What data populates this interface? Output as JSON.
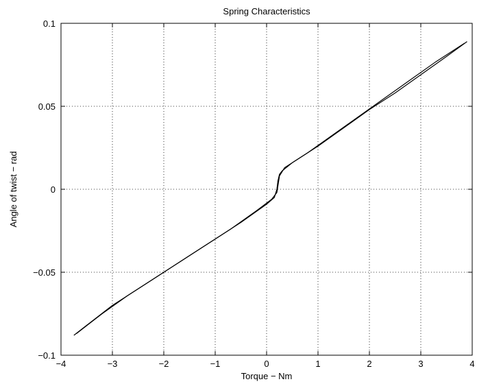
{
  "chart_data": {
    "type": "line",
    "title": "Spring Characteristics",
    "xlabel": "Torque − Nm",
    "ylabel": "Angle of twist − rad",
    "xlim": [
      -4,
      4
    ],
    "ylim": [
      -0.1,
      0.1
    ],
    "xticks": [
      -4,
      -3,
      -2,
      -1,
      0,
      1,
      2,
      3,
      4
    ],
    "xtick_labels": [
      "−4",
      "−3",
      "−2",
      "−1",
      "0",
      "1",
      "2",
      "3",
      "4"
    ],
    "yticks": [
      -0.1,
      -0.05,
      0,
      0.05,
      0.1
    ],
    "ytick_labels": [
      "−0.1",
      "−0.05",
      "0",
      "0.05",
      "0.1"
    ],
    "grid": true,
    "line_color": "#000000",
    "series": [
      {
        "x": [
          -3.75,
          -3.5,
          -3.0,
          -2.5,
          -2.0,
          -1.5,
          -1.0,
          -0.5,
          0.0,
          0.15,
          0.2,
          0.22,
          0.25,
          0.3,
          0.5,
          1.0,
          1.5,
          2.0,
          2.5,
          3.0,
          3.5,
          3.9
        ],
        "y": [
          -0.088,
          -0.082,
          -0.07,
          -0.06,
          -0.05,
          -0.04,
          -0.03,
          -0.02,
          -0.009,
          -0.005,
          0.0,
          0.005,
          0.009,
          0.011,
          0.016,
          0.026,
          0.037,
          0.048,
          0.058,
          0.069,
          0.08,
          0.089
        ]
      },
      {
        "x": [
          -3.7,
          -3.2,
          -2.7,
          -2.2,
          -1.7,
          -1.2,
          -0.7,
          -0.2,
          0.1,
          0.2,
          0.25,
          0.35,
          0.8,
          1.3,
          1.8,
          2.3,
          2.8,
          3.3,
          3.85
        ],
        "y": [
          -0.087,
          -0.075,
          -0.064,
          -0.054,
          -0.044,
          -0.034,
          -0.024,
          -0.013,
          -0.006,
          -0.002,
          0.008,
          0.013,
          0.022,
          0.033,
          0.044,
          0.055,
          0.066,
          0.077,
          0.088
        ]
      }
    ]
  }
}
